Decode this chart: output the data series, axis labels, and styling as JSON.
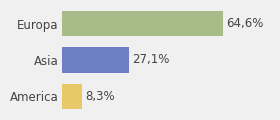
{
  "categories": [
    "Europa",
    "Asia",
    "America"
  ],
  "values": [
    64.6,
    27.1,
    8.3
  ],
  "labels": [
    "64,6%",
    "27,1%",
    "8,3%"
  ],
  "bar_colors": [
    "#a8bc8a",
    "#6b7fc2",
    "#e8c96a"
  ],
  "background_color": "#f0f0f0",
  "xlim": [
    0,
    85
  ],
  "bar_height": 0.7,
  "label_fontsize": 8.5,
  "tick_fontsize": 8.5
}
